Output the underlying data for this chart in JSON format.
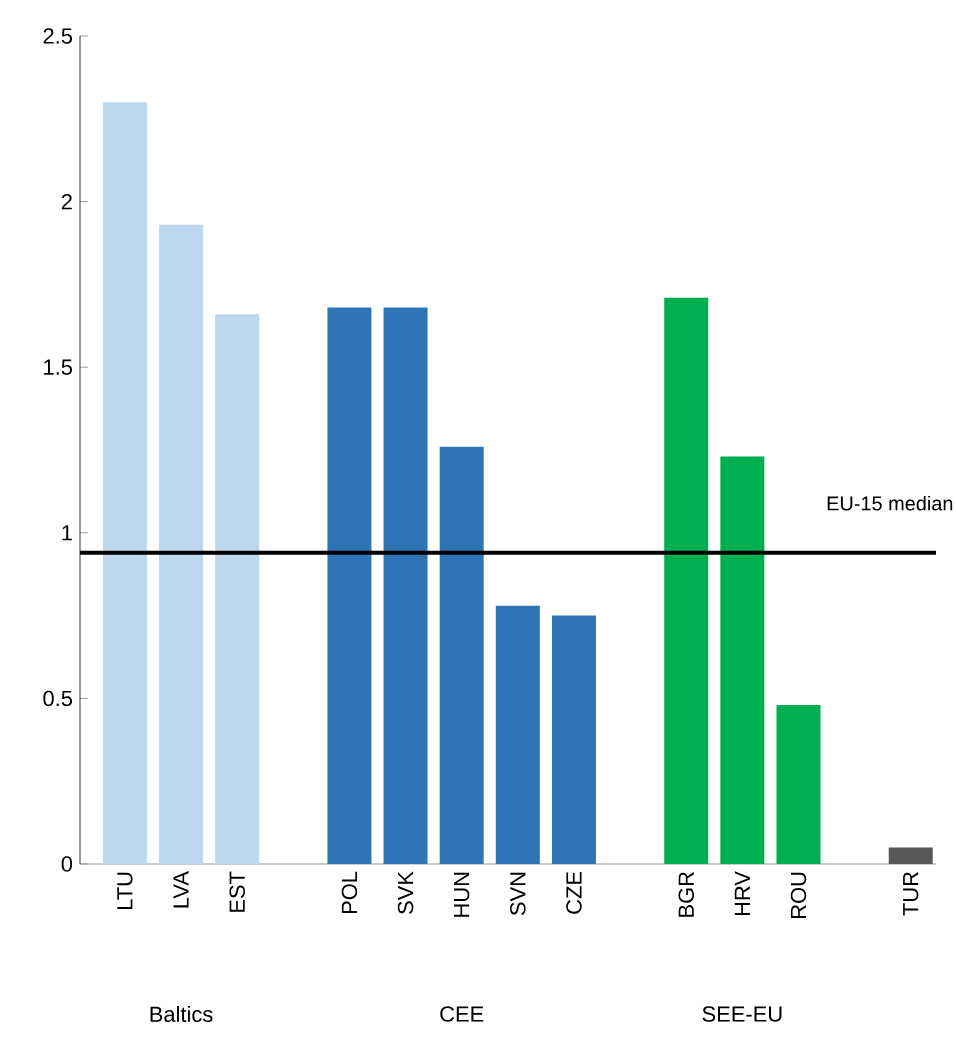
{
  "chart_data": {
    "type": "bar",
    "categories": [
      "LTU",
      "LVA",
      "EST",
      "POL",
      "SVK",
      "HUN",
      "SVN",
      "CZE",
      "BGR",
      "HRV",
      "ROU",
      "TUR"
    ],
    "values": [
      2.3,
      1.93,
      1.66,
      1.68,
      1.68,
      1.26,
      0.78,
      0.75,
      1.71,
      1.23,
      0.48,
      0.05
    ],
    "colors": [
      "#bdd7ee",
      "#bdd7ee",
      "#bdd7ee",
      "#2e75b6",
      "#2e75b6",
      "#2e75b6",
      "#2e75b6",
      "#2e75b6",
      "#00b050",
      "#00b050",
      "#00b050",
      "#595959"
    ],
    "ylim": [
      0,
      2.5
    ],
    "yticks": [
      0,
      0.5,
      1,
      1.5,
      2,
      2.5
    ],
    "ref_lines": [
      {
        "axis": "y",
        "value": 0.94,
        "label": "EU-15 median",
        "color": "#000000"
      }
    ],
    "annotations": [
      "Baltics",
      "CEE",
      "SEE-EU"
    ],
    "grid": false
  }
}
